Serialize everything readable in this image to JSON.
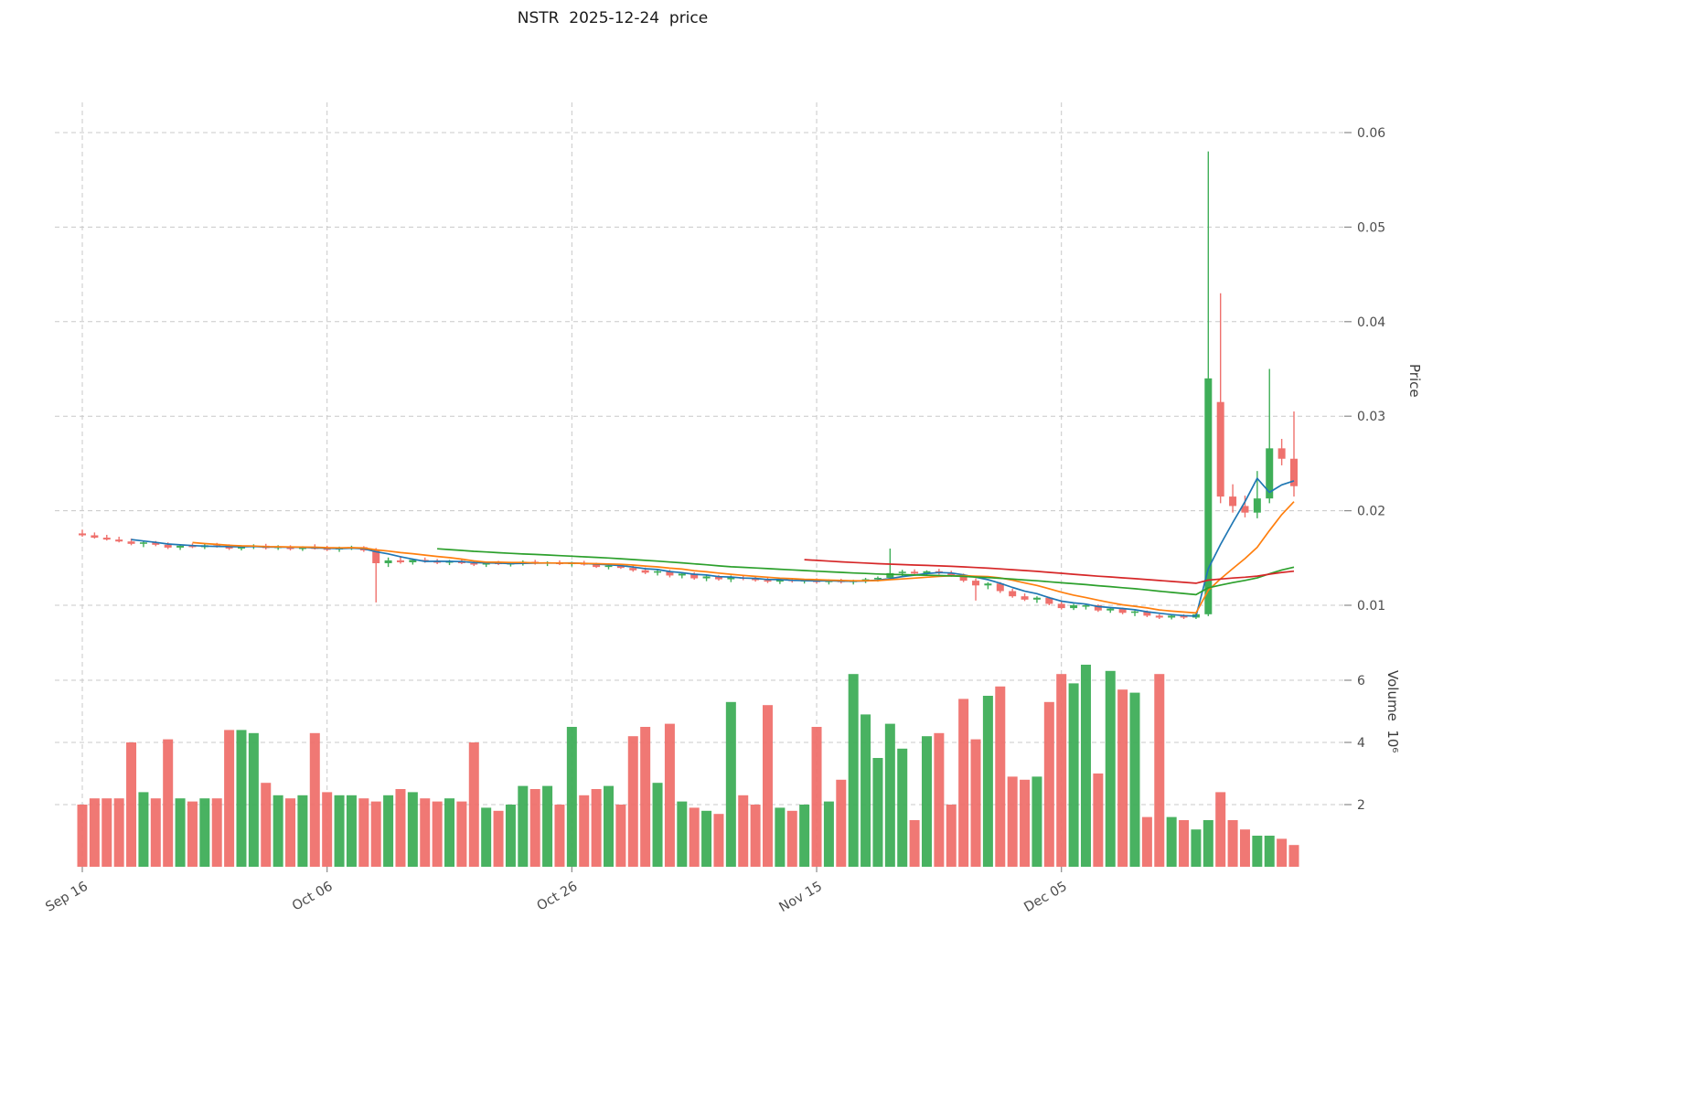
{
  "chart_data": {
    "type": "candlestick",
    "title": "NSTR  2025-12-24  price",
    "colors": {
      "up": "#3fae58",
      "down": "#ef716d",
      "grid": "#c8c8c8",
      "tick_text": "#4d4d4d"
    },
    "price_axis": {
      "label": "Price",
      "ticks": [
        {
          "value": 0.01,
          "label": "0.01"
        },
        {
          "value": 0.02,
          "label": "0.02"
        },
        {
          "value": 0.03,
          "label": "0.03"
        },
        {
          "value": 0.04,
          "label": "0.04"
        },
        {
          "value": 0.05,
          "label": "0.05"
        },
        {
          "value": 0.06,
          "label": "0.06"
        }
      ]
    },
    "volume_axis": {
      "label": "Volume  10⁶",
      "ticks": [
        {
          "value": 2,
          "label": "2"
        },
        {
          "value": 4,
          "label": "4"
        },
        {
          "value": 6,
          "label": "6"
        }
      ]
    },
    "x_axis": {
      "ticks": [
        {
          "index": 0,
          "label": "Sep 16"
        },
        {
          "index": 20,
          "label": "Oct 06"
        },
        {
          "index": 40,
          "label": "Oct 26"
        },
        {
          "index": 60,
          "label": "Nov 15"
        },
        {
          "index": 80,
          "label": "Dec 05"
        }
      ]
    },
    "ma": {
      "windows": [
        5,
        10,
        30,
        60
      ],
      "colors": [
        "#1f77b4",
        "#ff7f0e",
        "#2ca02c",
        "#d62728"
      ]
    },
    "columns": [
      "date",
      "open",
      "high",
      "low",
      "close",
      "volume_millions"
    ],
    "ohlc": [
      [
        "2025-09-16",
        0.0176,
        0.018,
        0.01725,
        0.0174,
        2.0
      ],
      [
        "2025-09-17",
        0.0174,
        0.0177,
        0.01705,
        0.01715,
        2.2
      ],
      [
        "2025-09-18",
        0.01715,
        0.01745,
        0.01685,
        0.01695,
        2.2
      ],
      [
        "2025-09-19",
        0.01695,
        0.01725,
        0.01665,
        0.01675,
        2.2
      ],
      [
        "2025-09-20",
        0.01675,
        0.01705,
        0.01635,
        0.0165,
        4.0
      ],
      [
        "2025-09-21",
        0.0165,
        0.01685,
        0.01615,
        0.01665,
        2.4
      ],
      [
        "2025-09-22",
        0.01665,
        0.0168,
        0.01625,
        0.0164,
        2.2
      ],
      [
        "2025-09-23",
        0.0164,
        0.01665,
        0.01595,
        0.0161,
        4.1
      ],
      [
        "2025-09-24",
        0.0161,
        0.01645,
        0.01585,
        0.0163,
        2.2
      ],
      [
        "2025-09-25",
        0.0163,
        0.01655,
        0.01605,
        0.01615,
        2.1
      ],
      [
        "2025-09-26",
        0.01615,
        0.0165,
        0.01595,
        0.01635,
        2.2
      ],
      [
        "2025-09-27",
        0.01635,
        0.0166,
        0.0161,
        0.01625,
        2.2
      ],
      [
        "2025-09-28",
        0.01625,
        0.01645,
        0.01585,
        0.016,
        4.4
      ],
      [
        "2025-09-29",
        0.016,
        0.01635,
        0.0158,
        0.0162,
        4.4
      ],
      [
        "2025-09-30",
        0.0162,
        0.01645,
        0.01595,
        0.0163,
        4.3
      ],
      [
        "2025-10-01",
        0.0163,
        0.0165,
        0.0159,
        0.01605,
        2.7
      ],
      [
        "2025-10-02",
        0.01605,
        0.01635,
        0.01585,
        0.0162,
        2.3
      ],
      [
        "2025-10-03",
        0.0162,
        0.01635,
        0.0158,
        0.01595,
        2.2
      ],
      [
        "2025-10-04",
        0.01595,
        0.01625,
        0.01575,
        0.0161,
        2.3
      ],
      [
        "2025-10-05",
        0.0161,
        0.01645,
        0.0159,
        0.016,
        4.3
      ],
      [
        "2025-10-06",
        0.016,
        0.0163,
        0.01575,
        0.0159,
        2.4
      ],
      [
        "2025-10-07",
        0.0159,
        0.0162,
        0.01565,
        0.01605,
        2.3
      ],
      [
        "2025-10-08",
        0.01605,
        0.0163,
        0.01585,
        0.01615,
        2.3
      ],
      [
        "2025-10-09",
        0.01615,
        0.01625,
        0.01565,
        0.0158,
        2.2
      ],
      [
        "2025-10-10",
        0.0158,
        0.01605,
        0.0103,
        0.01445,
        2.1
      ],
      [
        "2025-10-11",
        0.01445,
        0.01505,
        0.01405,
        0.01475,
        2.3
      ],
      [
        "2025-10-12",
        0.01475,
        0.0152,
        0.0144,
        0.01455,
        2.5
      ],
      [
        "2025-10-13",
        0.01455,
        0.01495,
        0.0143,
        0.0148,
        2.4
      ],
      [
        "2025-10-14",
        0.0148,
        0.01505,
        0.0145,
        0.01465,
        2.2
      ],
      [
        "2025-10-15",
        0.01465,
        0.0149,
        0.01435,
        0.0145,
        2.1
      ],
      [
        "2025-10-16",
        0.0145,
        0.0148,
        0.01425,
        0.0147,
        2.2
      ],
      [
        "2025-10-17",
        0.0147,
        0.01485,
        0.01435,
        0.01445,
        2.1
      ],
      [
        "2025-10-18",
        0.01445,
        0.0147,
        0.01415,
        0.0143,
        4.0
      ],
      [
        "2025-10-19",
        0.0143,
        0.0146,
        0.01405,
        0.0145,
        1.9
      ],
      [
        "2025-10-20",
        0.0145,
        0.0147,
        0.01425,
        0.01435,
        1.8
      ],
      [
        "2025-10-21",
        0.01435,
        0.0146,
        0.0141,
        0.01445,
        2.0
      ],
      [
        "2025-10-22",
        0.01445,
        0.01475,
        0.0142,
        0.0146,
        2.6
      ],
      [
        "2025-10-23",
        0.0146,
        0.0148,
        0.0143,
        0.0144,
        2.5
      ],
      [
        "2025-10-24",
        0.0144,
        0.01465,
        0.01415,
        0.01455,
        2.6
      ],
      [
        "2025-10-25",
        0.01455,
        0.01475,
        0.01425,
        0.01435,
        2.0
      ],
      [
        "2025-10-26",
        0.01435,
        0.0146,
        0.0141,
        0.0145,
        4.5
      ],
      [
        "2025-10-27",
        0.0145,
        0.0147,
        0.0142,
        0.0143,
        2.3
      ],
      [
        "2025-10-28",
        0.0143,
        0.0145,
        0.01395,
        0.01405,
        2.5
      ],
      [
        "2025-10-29",
        0.01405,
        0.01435,
        0.0138,
        0.0142,
        2.6
      ],
      [
        "2025-10-30",
        0.0142,
        0.0144,
        0.01385,
        0.01395,
        2.0
      ],
      [
        "2025-10-31",
        0.01395,
        0.0142,
        0.01355,
        0.0137,
        4.2
      ],
      [
        "2025-11-01",
        0.0137,
        0.014,
        0.0133,
        0.01345,
        4.5
      ],
      [
        "2025-11-02",
        0.01345,
        0.0138,
        0.01315,
        0.0136,
        2.7
      ],
      [
        "2025-11-03",
        0.0136,
        0.01375,
        0.01295,
        0.01315,
        4.6
      ],
      [
        "2025-11-04",
        0.01315,
        0.0135,
        0.01285,
        0.01335,
        2.1
      ],
      [
        "2025-11-05",
        0.01335,
        0.0135,
        0.0127,
        0.01285,
        1.9
      ],
      [
        "2025-11-06",
        0.01285,
        0.0132,
        0.01255,
        0.01305,
        1.8
      ],
      [
        "2025-11-07",
        0.01305,
        0.0132,
        0.0126,
        0.01275,
        1.7
      ],
      [
        "2025-11-08",
        0.01275,
        0.01315,
        0.01245,
        0.01295,
        5.3
      ],
      [
        "2025-11-09",
        0.01295,
        0.0132,
        0.01265,
        0.0128,
        2.3
      ],
      [
        "2025-11-10",
        0.0128,
        0.01305,
        0.0125,
        0.01265,
        2.0
      ],
      [
        "2025-11-11",
        0.01265,
        0.01295,
        0.01235,
        0.0125,
        5.2
      ],
      [
        "2025-11-12",
        0.0125,
        0.01285,
        0.01225,
        0.0127,
        1.9
      ],
      [
        "2025-11-13",
        0.0127,
        0.0129,
        0.0124,
        0.01255,
        1.8
      ],
      [
        "2025-11-14",
        0.01255,
        0.0128,
        0.0123,
        0.01265,
        2.0
      ],
      [
        "2025-11-15",
        0.01265,
        0.01285,
        0.0123,
        0.01245,
        4.5
      ],
      [
        "2025-11-16",
        0.01245,
        0.01275,
        0.0122,
        0.0126,
        2.1
      ],
      [
        "2025-11-17",
        0.0126,
        0.0128,
        0.0123,
        0.01245,
        2.8
      ],
      [
        "2025-11-18",
        0.01245,
        0.0127,
        0.0122,
        0.0126,
        6.2
      ],
      [
        "2025-11-19",
        0.0126,
        0.0129,
        0.01235,
        0.01275,
        4.9
      ],
      [
        "2025-11-20",
        0.01275,
        0.01305,
        0.0125,
        0.0129,
        3.5
      ],
      [
        "2025-11-21",
        0.0129,
        0.016,
        0.01265,
        0.0134,
        4.6
      ],
      [
        "2025-11-22",
        0.0134,
        0.01375,
        0.01305,
        0.01355,
        3.8
      ],
      [
        "2025-11-23",
        0.01355,
        0.0138,
        0.0132,
        0.01335,
        1.5
      ],
      [
        "2025-11-24",
        0.01335,
        0.0137,
        0.0131,
        0.0136,
        4.2
      ],
      [
        "2025-11-25",
        0.0136,
        0.01385,
        0.01325,
        0.0134,
        4.3
      ],
      [
        "2025-11-26",
        0.0134,
        0.01365,
        0.013,
        0.01315,
        2.0
      ],
      [
        "2025-11-27",
        0.01315,
        0.01335,
        0.01245,
        0.0126,
        5.4
      ],
      [
        "2025-11-28",
        0.0126,
        0.01285,
        0.0105,
        0.0121,
        4.1
      ],
      [
        "2025-11-29",
        0.0121,
        0.01245,
        0.0117,
        0.0123,
        5.5
      ],
      [
        "2025-11-30",
        0.0123,
        0.01245,
        0.0113,
        0.0115,
        5.8
      ],
      [
        "2025-12-01",
        0.0115,
        0.01175,
        0.0108,
        0.01095,
        2.9
      ],
      [
        "2025-12-02",
        0.01095,
        0.01125,
        0.01045,
        0.0106,
        2.8
      ],
      [
        "2025-12-03",
        0.0106,
        0.01095,
        0.01025,
        0.0108,
        2.9
      ],
      [
        "2025-12-04",
        0.0108,
        0.0109,
        0.01,
        0.01015,
        5.3
      ],
      [
        "2025-12-05",
        0.01015,
        0.0104,
        0.00955,
        0.0097,
        6.2
      ],
      [
        "2025-12-06",
        0.0097,
        0.01015,
        0.0095,
        0.01,
        5.9
      ],
      [
        "2025-12-07",
        0.00985,
        0.01015,
        0.00955,
        0.01,
        6.5
      ],
      [
        "2025-12-08",
        0.01,
        0.0101,
        0.0093,
        0.00945,
        3.0
      ],
      [
        "2025-12-09",
        0.00945,
        0.00975,
        0.0092,
        0.00965,
        6.3
      ],
      [
        "2025-12-10",
        0.00965,
        0.00975,
        0.00905,
        0.0092,
        5.7
      ],
      [
        "2025-12-11",
        0.0092,
        0.00945,
        0.00885,
        0.00935,
        5.6
      ],
      [
        "2025-12-12",
        0.00935,
        0.00945,
        0.00875,
        0.0089,
        1.6
      ],
      [
        "2025-12-13",
        0.0089,
        0.00905,
        0.00855,
        0.0087,
        6.2
      ],
      [
        "2025-12-14",
        0.0087,
        0.009,
        0.0085,
        0.0089,
        1.6
      ],
      [
        "2025-12-15",
        0.0089,
        0.00905,
        0.00855,
        0.0087,
        1.5
      ],
      [
        "2025-12-16",
        0.0087,
        0.00915,
        0.00855,
        0.00905,
        1.2
      ],
      [
        "2025-12-17",
        0.00905,
        0.058,
        0.00885,
        0.034,
        1.5
      ],
      [
        "2025-12-18",
        0.0315,
        0.043,
        0.0208,
        0.0215,
        2.4
      ],
      [
        "2025-12-19",
        0.0215,
        0.0228,
        0.0198,
        0.0205,
        1.5
      ],
      [
        "2025-12-20",
        0.0205,
        0.0216,
        0.0193,
        0.0198,
        1.2
      ],
      [
        "2025-12-21",
        0.0198,
        0.0242,
        0.0192,
        0.0213,
        1.0
      ],
      [
        "2025-12-22",
        0.0213,
        0.035,
        0.0208,
        0.0266,
        1.0
      ],
      [
        "2025-12-23",
        0.0266,
        0.0276,
        0.0248,
        0.0255,
        0.9
      ],
      [
        "2025-12-24",
        0.0255,
        0.0305,
        0.0215,
        0.0226,
        0.7
      ]
    ]
  }
}
